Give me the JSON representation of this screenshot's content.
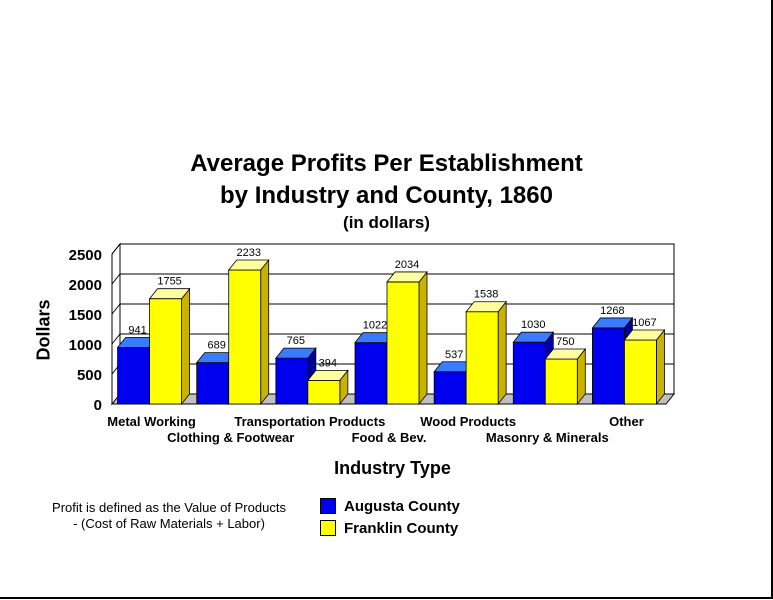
{
  "chart_data": {
    "type": "bar",
    "title_line1": "Average Profits Per Establishment",
    "title_line2": "by Industry and County, 1860",
    "subtitle": "(in dollars)",
    "ylabel": "Dollars",
    "xlabel": "Industry Type",
    "categories": [
      "Metal Working",
      "Clothing & Footwear",
      "Transportation Products",
      "Food & Bev.",
      "Wood Products",
      "Masonry & Minerals",
      "Other"
    ],
    "series": [
      {
        "name": "Augusta County",
        "color": "#0000ee",
        "values": [
          941,
          689,
          765,
          1022,
          537,
          1030,
          1268
        ]
      },
      {
        "name": "Franklin County",
        "color": "#ffff00",
        "values": [
          1755,
          2233,
          394,
          2034,
          1538,
          750,
          1067
        ]
      }
    ],
    "ylim": [
      0,
      2500
    ],
    "yticks": [
      0,
      500,
      1000,
      1500,
      2000,
      2500
    ],
    "grid": true,
    "legend_position": "bottom",
    "note_line1": "Profit is defined as the Value of Products",
    "note_line2": "- (Cost of Raw Materials + Labor)"
  }
}
